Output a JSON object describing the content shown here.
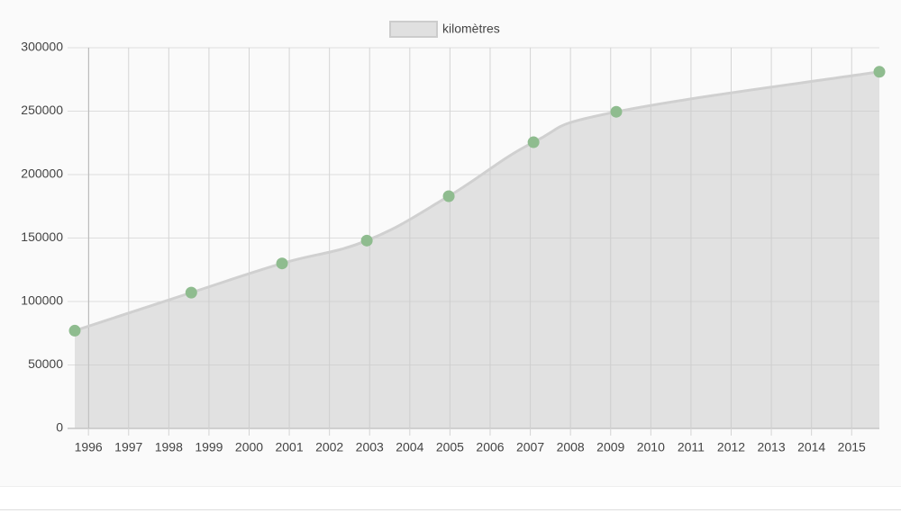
{
  "chart_data": {
    "type": "area",
    "x": [
      1995.66,
      1998.56,
      2000.82,
      2002.93,
      2004.97,
      2007.08,
      2009.14,
      2015.69
    ],
    "series": [
      {
        "name": "kilomètres",
        "color": "#8fbc8f",
        "values": [
          77000,
          107000,
          130000,
          148000,
          183000,
          225500,
          249500,
          281000
        ]
      }
    ],
    "xlim": [
      1995.66,
      2015.69
    ],
    "xticks": [
      1996,
      1997,
      1998,
      1999,
      2000,
      2001,
      2002,
      2003,
      2004,
      2005,
      2006,
      2007,
      2008,
      2009,
      2010,
      2011,
      2012,
      2013,
      2014,
      2015
    ],
    "ylim": [
      0,
      300000
    ],
    "yticks": [
      0,
      50000,
      100000,
      150000,
      200000,
      250000,
      300000
    ],
    "grid": true,
    "legend": "top"
  }
}
